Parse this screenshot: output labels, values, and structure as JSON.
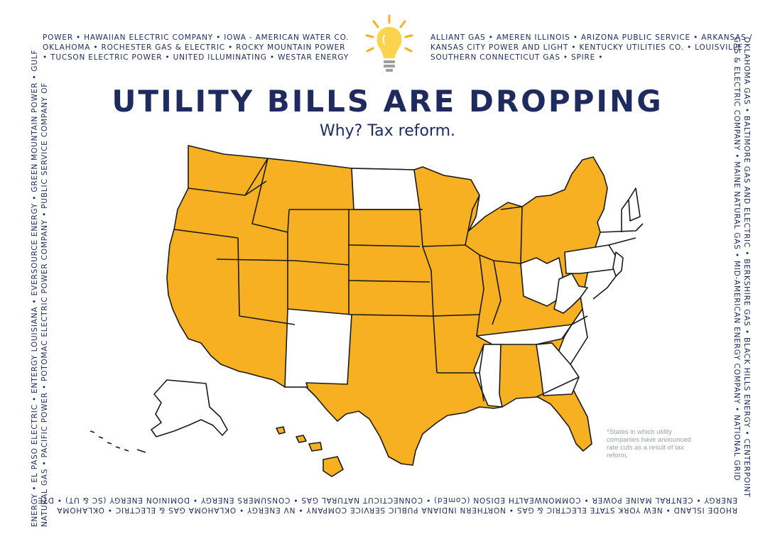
{
  "title": "UTILITY BILLS ARE DROPPING",
  "subtitle": "Why? Tax reform.",
  "footnote": "*States in which utility companies have announced rate cuts as a result of tax reform.",
  "border": {
    "top_left": [
      "POWER • HAWAIIAN ELECTRIC COMPANY • IOWA - AMERICAN WATER CO.",
      "OKLAHOMA • ROCHESTER GAS & ELECTRIC • ROCKY MOUNTAIN POWER",
      "• TUCSON ELECTRIC POWER • UNITED ILLUMINATING • WESTAR ENERGY"
    ],
    "top_right": [
      "ALLIANT GAS • AMEREN ILLINOIS • ARIZONA PUBLIC SERVICE • ARKANSAS /",
      "KANSAS CITY POWER AND LIGHT • KENTUCKY UTILITIES CO. • LOUISVILLE",
      "SOUTHERN CONNECTICUT GAS • SPIRE •"
    ],
    "bottom": [
      "RHODE ISLAND • NEW YORK STATE ELECTRIC & GAS • NORTHERN INDIANA PUBLIC SERVICE COMPANY • NV ENERGY • OKLAHOMA GAS & ELECTRIC • OKLAHOMA",
      "ENERGY • CENTRAL MAINE POWER • COMMONWEALTH EDISON (ComEd) • CONNECTICUT NATURAL GAS • CONSUMERS ENERGY • DOMINION ENERGY (SC & UT) • DTE"
    ],
    "left": [
      "ENERGY • EL PASO ELECTRIC • ENTERGY LOUISIANA • EVERSOURCE ENERGY • GREEN MOUNTAIN POWER • GULF",
      "NATURAL GAS • PACIFIC POWER • POTOMAC ELECTRIC POWER COMPANY • PUBLIC SERVICE COMPANY OF"
    ],
    "right": [
      "OKLAHOMA GAS • BALTIMORE GAS AND ELECTRIC • BERKSHIRE GAS • BLACK HILLS ENERGY • CENTERPOINT",
      "GAS & ELECTRIC COMPANY • MAINE NATURAL GAS • MID-AMERICAN ENERGY COMPANY • NATIONAL GRID"
    ]
  },
  "colors": {
    "highlight": "#f6b022",
    "highlight_light": "#fcc644",
    "plain": "#ffffff",
    "outline": "#1a1a1a",
    "navy": "#1f2a5e"
  }
}
